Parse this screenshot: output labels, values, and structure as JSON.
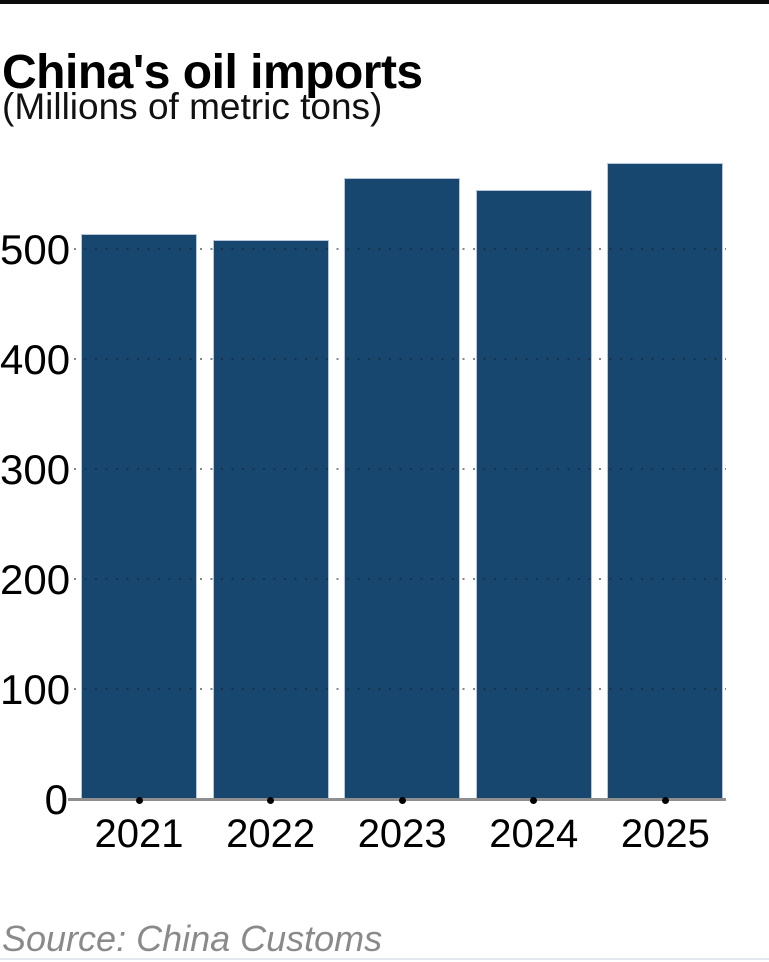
{
  "chart_data": {
    "type": "bar",
    "title": "China's oil imports",
    "subtitle": "(Millions of metric tons)",
    "categories": [
      "2021",
      "2022",
      "2023",
      "2024",
      "2025"
    ],
    "values": [
      513,
      508,
      564,
      553,
      578
    ],
    "xlabel": "",
    "ylabel": "",
    "y_ticks": [
      0,
      100,
      200,
      300,
      400,
      500
    ],
    "ylim": [
      0,
      590
    ],
    "grid": "horizontal-dotted",
    "legend_position": "none",
    "bar_color": "#17466f",
    "bar_edge_color": "#b7c7d9",
    "gridline_color": "rgba(25,35,48,0.55)",
    "axis_line_color": "#8f8f8f",
    "tick_marker_color": "#000000"
  },
  "footer": {
    "source_note": "Source: China Customs"
  },
  "decor": {
    "top_bar_color": "#0b0b0b",
    "bottom_rule_color": "#e4e8ec"
  }
}
